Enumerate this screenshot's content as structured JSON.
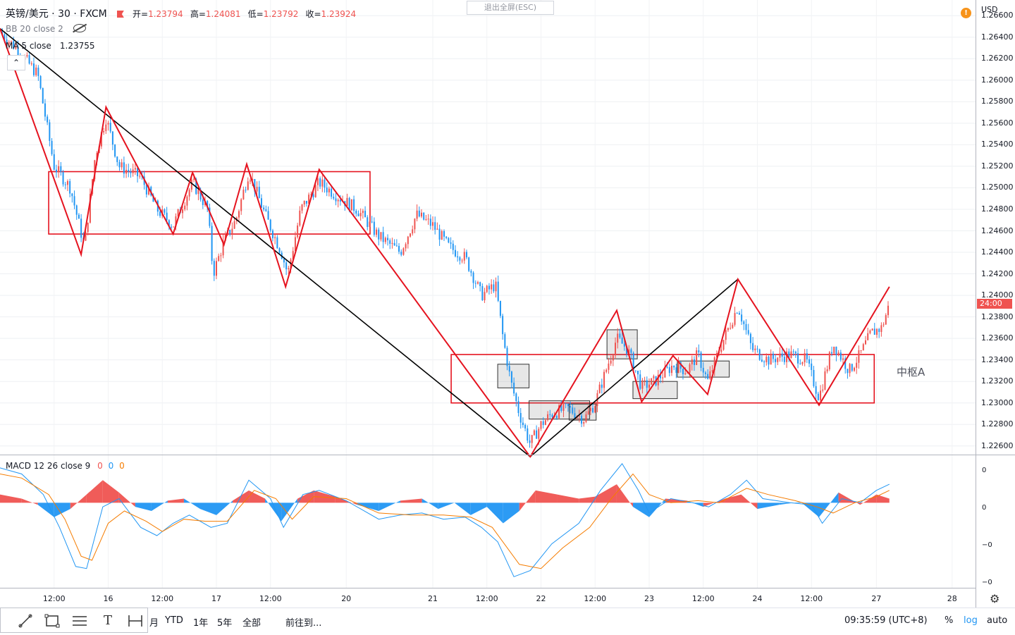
{
  "header": {
    "symbol": "英镑/美元 · 30 · FXCM",
    "ohlc": [
      {
        "label": "开=",
        "value": "1.23794"
      },
      {
        "label": "高=",
        "value": "1.24081"
      },
      {
        "label": "低=",
        "value": "1.23792"
      },
      {
        "label": "收=",
        "value": "1.23924"
      }
    ],
    "bb_label": "BB 20 close 2",
    "ma_label": "MA 5 close",
    "ma_value": "1.23755",
    "exit_fullscreen": "退出全屏(ESC)",
    "warning_glyph": "!"
  },
  "price_axis": {
    "currency": "USD",
    "ticks": [
      "1.26600",
      "1.26400",
      "1.26200",
      "1.26000",
      "1.25800",
      "1.25600",
      "1.25400",
      "1.25200",
      "1.25000",
      "1.24800",
      "1.24600",
      "1.24400",
      "1.24200",
      "1.24000",
      "1.23800",
      "1.23600",
      "1.23400",
      "1.23200",
      "1.23000",
      "1.22800",
      "1.22600"
    ],
    "countdown": "24:00",
    "countdown_price": 1.23924
  },
  "pivot_label": "中枢A",
  "macd": {
    "label": "MACD 12 26 close 9",
    "values": [
      "0",
      "0",
      "0"
    ],
    "value_colors": [
      "#ef5350",
      "#2196f3",
      "#f57c00"
    ],
    "ticks": [
      "0",
      "0",
      "−0",
      "−0"
    ]
  },
  "time_axis": {
    "ticks": [
      {
        "label": "12:00",
        "t": 0.5
      },
      {
        "label": "16",
        "t": 1
      },
      {
        "label": "12:00",
        "t": 1.5
      },
      {
        "label": "17",
        "t": 2
      },
      {
        "label": "12:00",
        "t": 2.5
      },
      {
        "label": "20",
        "t": 3.2
      },
      {
        "label": "21",
        "t": 4
      },
      {
        "label": "12:00",
        "t": 4.5
      },
      {
        "label": "22",
        "t": 5
      },
      {
        "label": "12:00",
        "t": 5.5
      },
      {
        "label": "23",
        "t": 6
      },
      {
        "label": "12:00",
        "t": 6.5
      },
      {
        "label": "24",
        "t": 7
      },
      {
        "label": "12:00",
        "t": 7.5
      },
      {
        "label": "27",
        "t": 8.1
      },
      {
        "label": "28",
        "t": 8.8
      }
    ]
  },
  "toolbar": {
    "tool_icons": [
      "trend-line-icon",
      "rectangle-icon",
      "parallel-lines-icon",
      "text-icon",
      "measure-icon"
    ],
    "text_tool_glyph": "T",
    "ranges": [
      "月",
      "YTD",
      "1年",
      "5年",
      "全部"
    ],
    "goto": "前往到...",
    "clock": "09:35:59 (UTC+8)",
    "percent": "%",
    "log": "log",
    "auto": "auto"
  },
  "chart_data": {
    "type": "candlestick",
    "symbol": "英镑/美元",
    "interval": "30",
    "x_unit": "days (0 = start of visible range)",
    "ylim": [
      1.2252,
      1.2668
    ],
    "colors": {
      "up": "#ef5350",
      "down": "#2196f3",
      "zigzag": "#e5131f",
      "trend": "#000000",
      "pivot_box": "#e5131f",
      "macd_line": "#2196f3",
      "signal_line": "#f57c00"
    },
    "zigzag": [
      {
        "t": 0.0,
        "p": 1.2648
      },
      {
        "t": 0.75,
        "p": 1.2438
      },
      {
        "t": 0.98,
        "p": 1.2575
      },
      {
        "t": 1.6,
        "p": 1.2457
      },
      {
        "t": 1.78,
        "p": 1.2514
      },
      {
        "t": 2.07,
        "p": 1.2447
      },
      {
        "t": 2.28,
        "p": 1.2522
      },
      {
        "t": 2.64,
        "p": 1.2408
      },
      {
        "t": 2.95,
        "p": 1.2517
      },
      {
        "t": 3.4,
        "p": 1.2456
      },
      {
        "t": 4.9,
        "p": 1.225
      },
      {
        "t": 5.7,
        "p": 1.2386
      },
      {
        "t": 5.93,
        "p": 1.2301
      },
      {
        "t": 6.22,
        "p": 1.2344
      },
      {
        "t": 6.54,
        "p": 1.2308
      },
      {
        "t": 6.82,
        "p": 1.2415
      },
      {
        "t": 7.57,
        "p": 1.2298
      },
      {
        "t": 8.22,
        "p": 1.2408
      }
    ],
    "trend_lines": [
      [
        {
          "t": 0.0,
          "p": 1.2648
        },
        {
          "t": 4.9,
          "p": 1.225
        }
      ],
      [
        {
          "t": 4.9,
          "p": 1.225
        },
        {
          "t": 6.82,
          "p": 1.2415
        }
      ]
    ],
    "pivot_zones": [
      {
        "t_start": 0.45,
        "t_end": 3.42,
        "high": 1.2515,
        "low": 1.2457
      },
      {
        "t_start": 4.17,
        "t_end": 8.08,
        "high": 1.2345,
        "low": 1.23
      }
    ],
    "small_boxes": [
      {
        "t_start": 4.6,
        "t_end": 4.89,
        "high": 1.2336,
        "low": 1.2314
      },
      {
        "t_start": 4.89,
        "t_end": 5.45,
        "high": 1.2302,
        "low": 1.2285
      },
      {
        "t_start": 5.26,
        "t_end": 5.51,
        "high": 1.2299,
        "low": 1.2284
      },
      {
        "t_start": 5.61,
        "t_end": 5.89,
        "high": 1.2368,
        "low": 1.2341
      },
      {
        "t_start": 5.85,
        "t_end": 6.26,
        "high": 1.232,
        "low": 1.2304
      },
      {
        "t_start": 6.26,
        "t_end": 6.74,
        "high": 1.2339,
        "low": 1.2324
      }
    ],
    "price_path": [
      {
        "t": 0.0,
        "p": 1.2645
      },
      {
        "t": 0.15,
        "p": 1.263
      },
      {
        "t": 0.35,
        "p": 1.2605
      },
      {
        "t": 0.5,
        "p": 1.252
      },
      {
        "t": 0.65,
        "p": 1.25
      },
      {
        "t": 0.78,
        "p": 1.2445
      },
      {
        "t": 0.88,
        "p": 1.253
      },
      {
        "t": 0.98,
        "p": 1.2565
      },
      {
        "t": 1.1,
        "p": 1.252
      },
      {
        "t": 1.3,
        "p": 1.251
      },
      {
        "t": 1.45,
        "p": 1.248
      },
      {
        "t": 1.6,
        "p": 1.2465
      },
      {
        "t": 1.78,
        "p": 1.2505
      },
      {
        "t": 1.92,
        "p": 1.248
      },
      {
        "t": 1.97,
        "p": 1.242
      },
      {
        "t": 2.07,
        "p": 1.245
      },
      {
        "t": 2.18,
        "p": 1.247
      },
      {
        "t": 2.3,
        "p": 1.2515
      },
      {
        "t": 2.45,
        "p": 1.2475
      },
      {
        "t": 2.6,
        "p": 1.244
      },
      {
        "t": 2.66,
        "p": 1.242
      },
      {
        "t": 2.78,
        "p": 1.248
      },
      {
        "t": 2.95,
        "p": 1.2505
      },
      {
        "t": 3.15,
        "p": 1.249
      },
      {
        "t": 3.3,
        "p": 1.248
      },
      {
        "t": 3.5,
        "p": 1.2455
      },
      {
        "t": 3.7,
        "p": 1.244
      },
      {
        "t": 3.85,
        "p": 1.2475
      },
      {
        "t": 4.0,
        "p": 1.2465
      },
      {
        "t": 4.15,
        "p": 1.2445
      },
      {
        "t": 4.3,
        "p": 1.2435
      },
      {
        "t": 4.45,
        "p": 1.24
      },
      {
        "t": 4.58,
        "p": 1.241
      },
      {
        "t": 4.65,
        "p": 1.236
      },
      {
        "t": 4.72,
        "p": 1.232
      },
      {
        "t": 4.8,
        "p": 1.229
      },
      {
        "t": 4.9,
        "p": 1.2262
      },
      {
        "t": 5.0,
        "p": 1.228
      },
      {
        "t": 5.1,
        "p": 1.229
      },
      {
        "t": 5.25,
        "p": 1.2295
      },
      {
        "t": 5.4,
        "p": 1.2285
      },
      {
        "t": 5.5,
        "p": 1.23
      },
      {
        "t": 5.6,
        "p": 1.233
      },
      {
        "t": 5.7,
        "p": 1.236
      },
      {
        "t": 5.8,
        "p": 1.235
      },
      {
        "t": 5.93,
        "p": 1.2315
      },
      {
        "t": 6.05,
        "p": 1.232
      },
      {
        "t": 6.22,
        "p": 1.2335
      },
      {
        "t": 6.35,
        "p": 1.233
      },
      {
        "t": 6.45,
        "p": 1.2345
      },
      {
        "t": 6.54,
        "p": 1.232
      },
      {
        "t": 6.65,
        "p": 1.235
      },
      {
        "t": 6.82,
        "p": 1.239
      },
      {
        "t": 6.95,
        "p": 1.235
      },
      {
        "t": 7.1,
        "p": 1.234
      },
      {
        "t": 7.3,
        "p": 1.2345
      },
      {
        "t": 7.45,
        "p": 1.234
      },
      {
        "t": 7.57,
        "p": 1.2305
      },
      {
        "t": 7.7,
        "p": 1.2355
      },
      {
        "t": 7.85,
        "p": 1.233
      },
      {
        "t": 7.95,
        "p": 1.2345
      },
      {
        "t": 8.05,
        "p": 1.2365
      },
      {
        "t": 8.15,
        "p": 1.237
      },
      {
        "t": 8.22,
        "p": 1.2392
      }
    ],
    "macd_panel": {
      "histogram": [
        {
          "t": 0.0,
          "v": 0.2
        },
        {
          "t": 0.2,
          "v": 0.1
        },
        {
          "t": 0.35,
          "v": -0.05
        },
        {
          "t": 0.5,
          "v": -0.35
        },
        {
          "t": 0.65,
          "v": -0.15
        },
        {
          "t": 0.8,
          "v": 0.2
        },
        {
          "t": 0.95,
          "v": 0.55
        },
        {
          "t": 1.1,
          "v": 0.25
        },
        {
          "t": 1.25,
          "v": -0.1
        },
        {
          "t": 1.4,
          "v": -0.2
        },
        {
          "t": 1.55,
          "v": 0.05
        },
        {
          "t": 1.7,
          "v": 0.1
        },
        {
          "t": 1.85,
          "v": -0.15
        },
        {
          "t": 2.0,
          "v": -0.3
        },
        {
          "t": 2.15,
          "v": 0.05
        },
        {
          "t": 2.3,
          "v": 0.3
        },
        {
          "t": 2.45,
          "v": 0.1
        },
        {
          "t": 2.6,
          "v": -0.45
        },
        {
          "t": 2.75,
          "v": 0.1
        },
        {
          "t": 2.9,
          "v": 0.3
        },
        {
          "t": 3.1,
          "v": 0.15
        },
        {
          "t": 3.3,
          "v": -0.05
        },
        {
          "t": 3.5,
          "v": -0.2
        },
        {
          "t": 3.7,
          "v": 0.05
        },
        {
          "t": 3.9,
          "v": 0.1
        },
        {
          "t": 4.05,
          "v": -0.15
        },
        {
          "t": 4.2,
          "v": 0.0
        },
        {
          "t": 4.35,
          "v": -0.3
        },
        {
          "t": 4.5,
          "v": -0.1
        },
        {
          "t": 4.65,
          "v": -0.5
        },
        {
          "t": 4.8,
          "v": -0.2
        },
        {
          "t": 4.95,
          "v": 0.3
        },
        {
          "t": 5.15,
          "v": 0.2
        },
        {
          "t": 5.35,
          "v": 0.1
        },
        {
          "t": 5.5,
          "v": 0.15
        },
        {
          "t": 5.7,
          "v": 0.45
        },
        {
          "t": 5.85,
          "v": -0.1
        },
        {
          "t": 6.0,
          "v": -0.35
        },
        {
          "t": 6.15,
          "v": 0.1
        },
        {
          "t": 6.35,
          "v": 0.05
        },
        {
          "t": 6.5,
          "v": -0.1
        },
        {
          "t": 6.7,
          "v": 0.1
        },
        {
          "t": 6.85,
          "v": 0.2
        },
        {
          "t": 7.0,
          "v": -0.15
        },
        {
          "t": 7.2,
          "v": -0.05
        },
        {
          "t": 7.4,
          "v": 0.02
        },
        {
          "t": 7.57,
          "v": -0.35
        },
        {
          "t": 7.75,
          "v": 0.25
        },
        {
          "t": 7.95,
          "v": -0.05
        },
        {
          "t": 8.1,
          "v": 0.2
        },
        {
          "t": 8.22,
          "v": 0.1
        }
      ],
      "macd_line": [
        {
          "t": 0.0,
          "v": 0.85
        },
        {
          "t": 0.2,
          "v": 0.7
        },
        {
          "t": 0.4,
          "v": 0.2
        },
        {
          "t": 0.55,
          "v": -0.6
        },
        {
          "t": 0.7,
          "v": -1.55
        },
        {
          "t": 0.8,
          "v": -1.6
        },
        {
          "t": 0.95,
          "v": -0.1
        },
        {
          "t": 1.1,
          "v": 0.1
        },
        {
          "t": 1.3,
          "v": -0.6
        },
        {
          "t": 1.45,
          "v": -0.8
        },
        {
          "t": 1.6,
          "v": -0.5
        },
        {
          "t": 1.75,
          "v": -0.3
        },
        {
          "t": 1.95,
          "v": -0.6
        },
        {
          "t": 2.1,
          "v": -0.5
        },
        {
          "t": 2.3,
          "v": 0.55
        },
        {
          "t": 2.5,
          "v": 0.1
        },
        {
          "t": 2.62,
          "v": -0.6
        },
        {
          "t": 2.8,
          "v": 0.2
        },
        {
          "t": 2.95,
          "v": 0.3
        },
        {
          "t": 3.2,
          "v": 0.05
        },
        {
          "t": 3.5,
          "v": -0.4
        },
        {
          "t": 3.7,
          "v": -0.3
        },
        {
          "t": 3.9,
          "v": -0.25
        },
        {
          "t": 4.1,
          "v": -0.4
        },
        {
          "t": 4.3,
          "v": -0.35
        },
        {
          "t": 4.45,
          "v": -0.6
        },
        {
          "t": 4.6,
          "v": -0.95
        },
        {
          "t": 4.75,
          "v": -1.8
        },
        {
          "t": 4.9,
          "v": -1.65
        },
        {
          "t": 5.1,
          "v": -1.0
        },
        {
          "t": 5.35,
          "v": -0.5
        },
        {
          "t": 5.55,
          "v": 0.3
        },
        {
          "t": 5.75,
          "v": 0.95
        },
        {
          "t": 5.9,
          "v": 0.3
        },
        {
          "t": 6.0,
          "v": -0.25
        },
        {
          "t": 6.2,
          "v": 0.1
        },
        {
          "t": 6.4,
          "v": 0.0
        },
        {
          "t": 6.55,
          "v": -0.1
        },
        {
          "t": 6.75,
          "v": 0.2
        },
        {
          "t": 6.9,
          "v": 0.55
        },
        {
          "t": 7.05,
          "v": 0.1
        },
        {
          "t": 7.3,
          "v": 0.0
        },
        {
          "t": 7.5,
          "v": -0.05
        },
        {
          "t": 7.6,
          "v": -0.5
        },
        {
          "t": 7.78,
          "v": 0.1
        },
        {
          "t": 7.95,
          "v": 0.0
        },
        {
          "t": 8.1,
          "v": 0.3
        },
        {
          "t": 8.22,
          "v": 0.45
        }
      ],
      "signal_line": [
        {
          "t": 0.0,
          "v": 0.7
        },
        {
          "t": 0.2,
          "v": 0.6
        },
        {
          "t": 0.45,
          "v": 0.2
        },
        {
          "t": 0.6,
          "v": -0.4
        },
        {
          "t": 0.75,
          "v": -1.3
        },
        {
          "t": 0.85,
          "v": -1.4
        },
        {
          "t": 1.0,
          "v": -0.5
        },
        {
          "t": 1.15,
          "v": -0.2
        },
        {
          "t": 1.35,
          "v": -0.45
        },
        {
          "t": 1.5,
          "v": -0.7
        },
        {
          "t": 1.7,
          "v": -0.4
        },
        {
          "t": 1.9,
          "v": -0.45
        },
        {
          "t": 2.1,
          "v": -0.45
        },
        {
          "t": 2.35,
          "v": 0.3
        },
        {
          "t": 2.55,
          "v": 0.1
        },
        {
          "t": 2.7,
          "v": -0.4
        },
        {
          "t": 2.9,
          "v": 0.15
        },
        {
          "t": 3.2,
          "v": 0.1
        },
        {
          "t": 3.5,
          "v": -0.25
        },
        {
          "t": 3.8,
          "v": -0.3
        },
        {
          "t": 4.1,
          "v": -0.3
        },
        {
          "t": 4.35,
          "v": -0.35
        },
        {
          "t": 4.55,
          "v": -0.6
        },
        {
          "t": 4.8,
          "v": -1.5
        },
        {
          "t": 5.0,
          "v": -1.6
        },
        {
          "t": 5.2,
          "v": -1.1
        },
        {
          "t": 5.45,
          "v": -0.6
        },
        {
          "t": 5.65,
          "v": 0.1
        },
        {
          "t": 5.85,
          "v": 0.7
        },
        {
          "t": 6.0,
          "v": 0.2
        },
        {
          "t": 6.2,
          "v": 0.0
        },
        {
          "t": 6.45,
          "v": 0.05
        },
        {
          "t": 6.65,
          "v": 0.0
        },
        {
          "t": 6.9,
          "v": 0.35
        },
        {
          "t": 7.1,
          "v": 0.2
        },
        {
          "t": 7.35,
          "v": 0.05
        },
        {
          "t": 7.55,
          "v": -0.1
        },
        {
          "t": 7.7,
          "v": -0.25
        },
        {
          "t": 7.9,
          "v": 0.0
        },
        {
          "t": 8.1,
          "v": 0.15
        },
        {
          "t": 8.22,
          "v": 0.3
        }
      ],
      "ylim": [
        -2.0,
        1.0
      ]
    }
  }
}
